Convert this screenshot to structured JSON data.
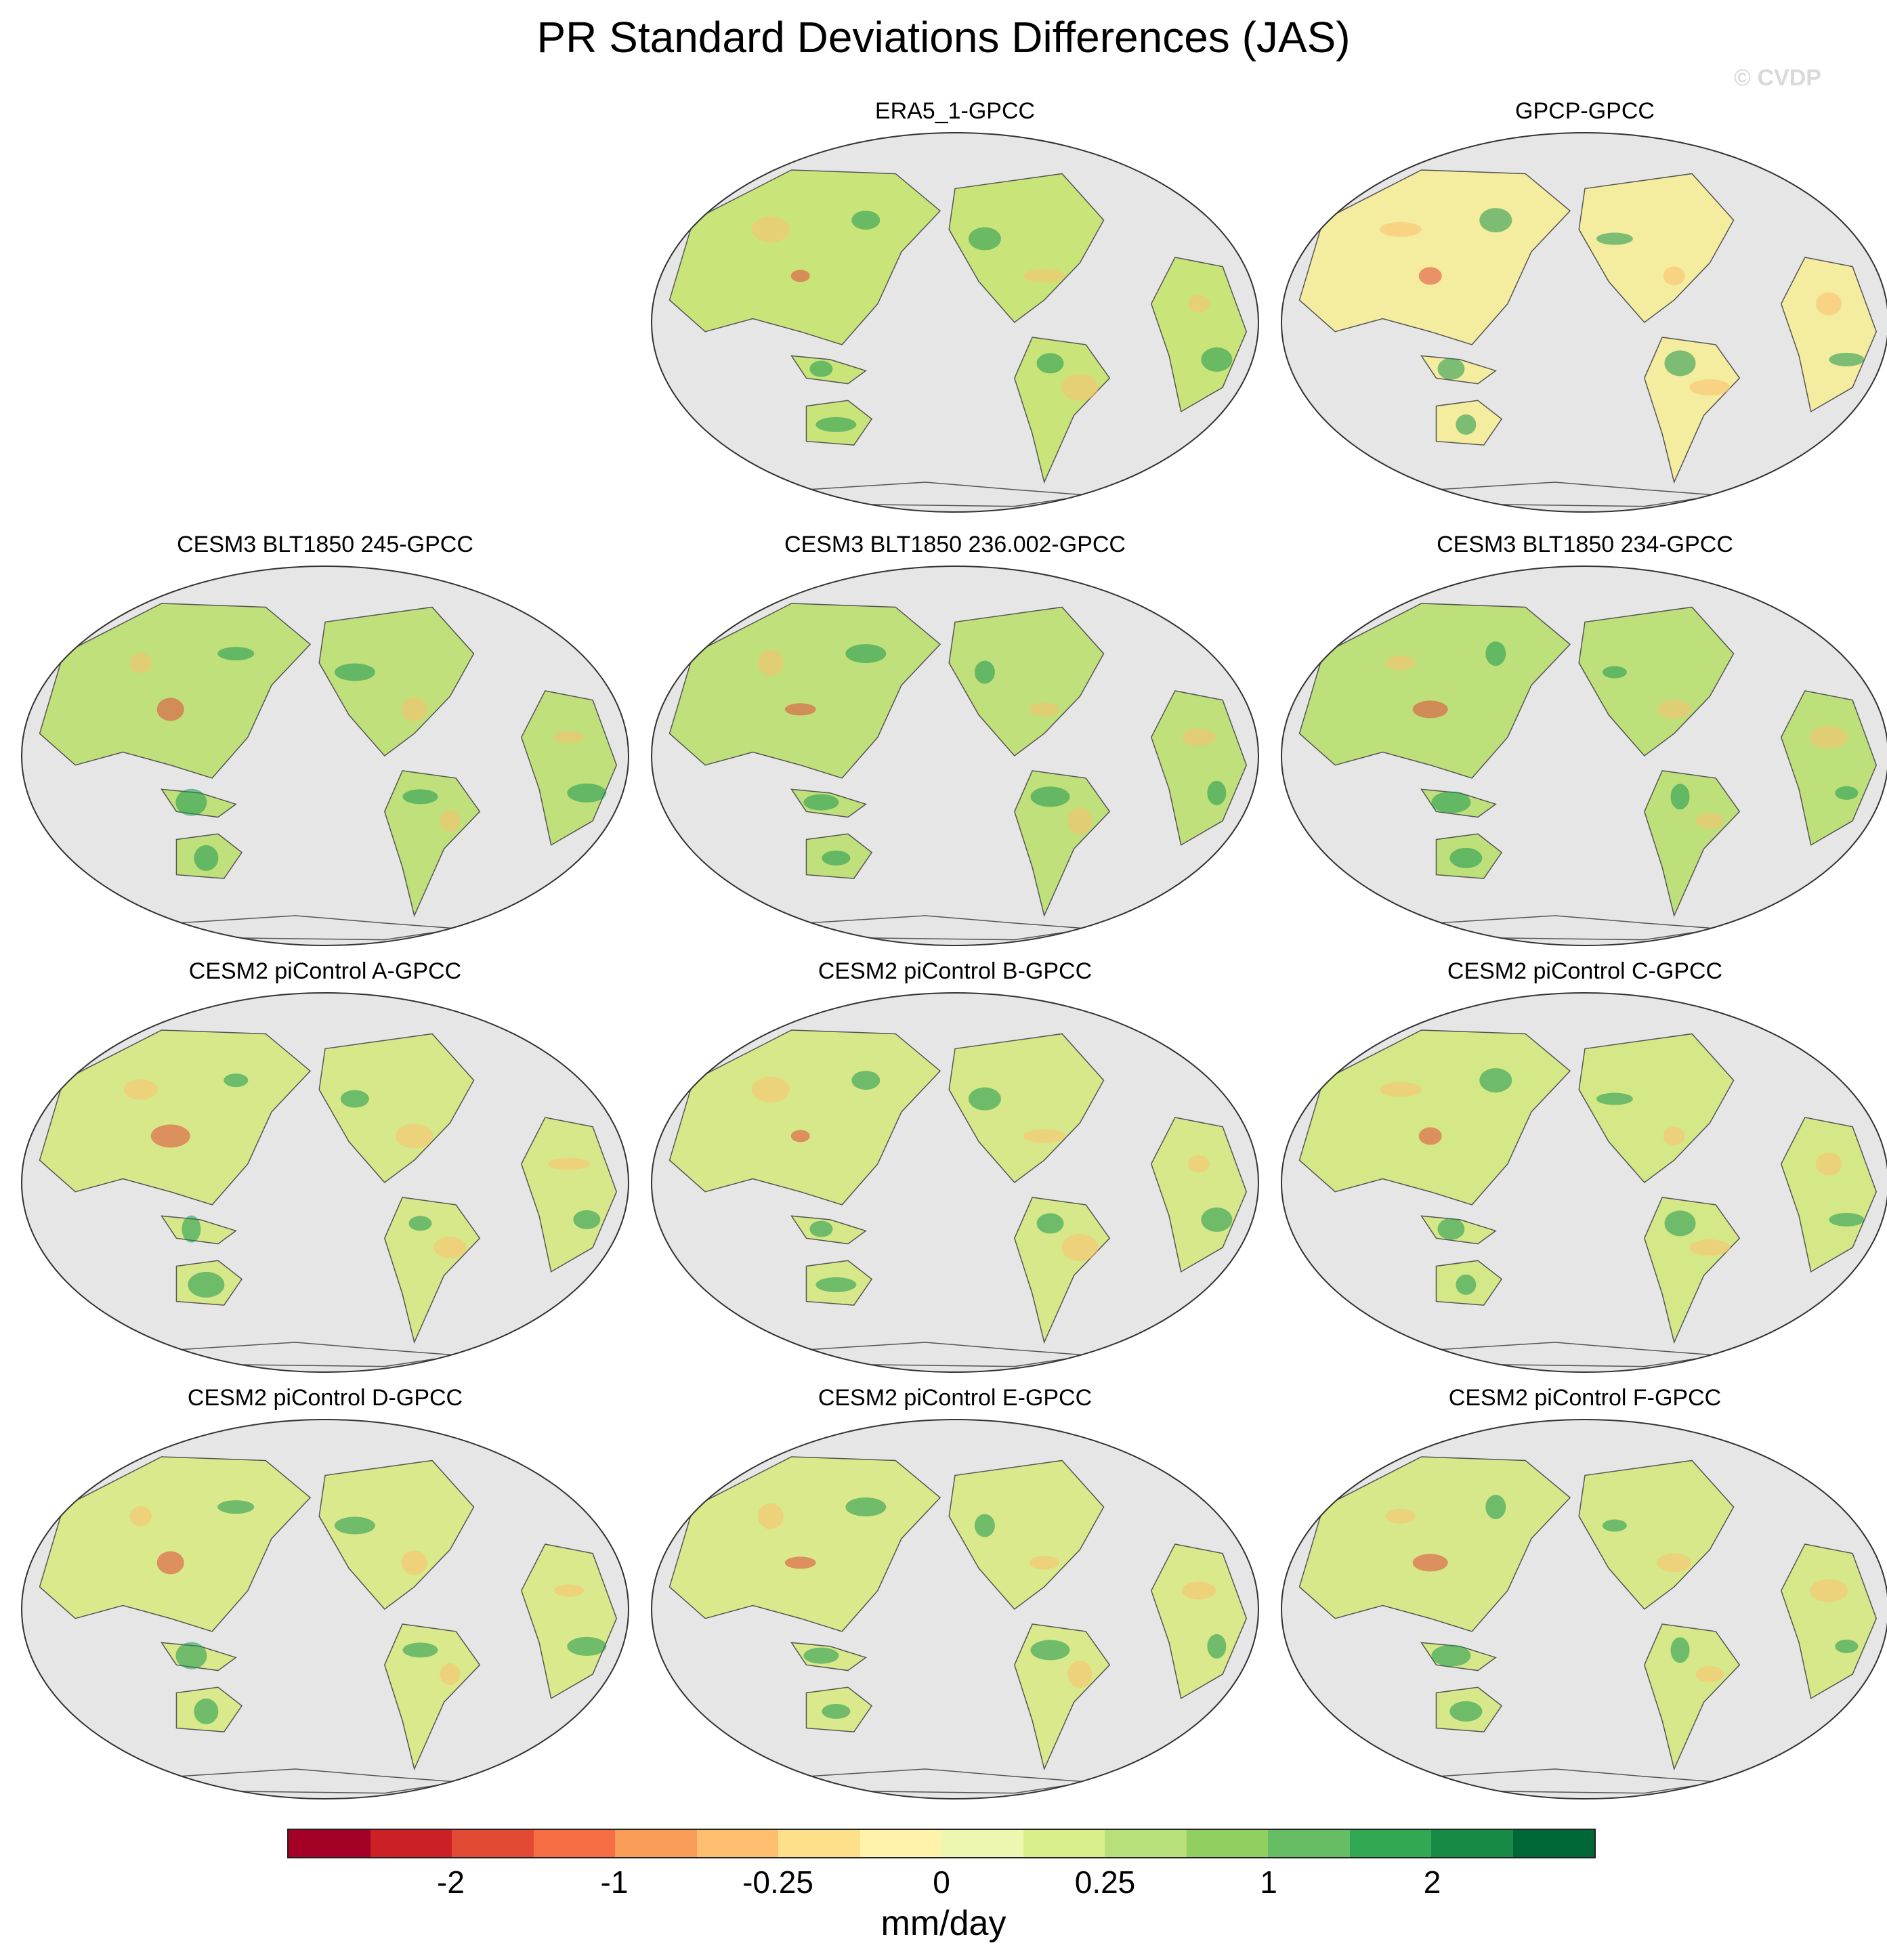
{
  "title": "PR Standard Deviations Differences (JAS)",
  "watermark": "© CVDP",
  "panels": [
    {
      "title": "ERA5_1-GPCC",
      "tint": "#c9e57a"
    },
    {
      "title": "GPCP-GPCC",
      "tint": "#f4ec9e"
    },
    {
      "title": "CESM3 BLT1850 245-GPCC",
      "tint": "#bfe07a"
    },
    {
      "title": "CESM3 BLT1850 236.002-GPCC",
      "tint": "#bfe07a"
    },
    {
      "title": "CESM3 BLT1850 234-GPCC",
      "tint": "#bde07a"
    },
    {
      "title": "CESM2 piControl A-GPCC",
      "tint": "#d6e889"
    },
    {
      "title": "CESM2 piControl B-GPCC",
      "tint": "#d6e889"
    },
    {
      "title": "CESM2 piControl C-GPCC",
      "tint": "#d4e887"
    },
    {
      "title": "CESM2 piControl D-GPCC",
      "tint": "#d9e98b"
    },
    {
      "title": "CESM2 piControl E-GPCC",
      "tint": "#d9e98b"
    },
    {
      "title": "CESM2 piControl F-GPCC",
      "tint": "#d6e889"
    }
  ],
  "colorbar": {
    "unit": "mm/day",
    "colors": [
      "#a50026",
      "#cc2027",
      "#e34a33",
      "#f46d43",
      "#f99d59",
      "#fdbf6f",
      "#fee08b",
      "#fff2aa",
      "#eef7b0",
      "#d9ef8b",
      "#b8e07a",
      "#91cf60",
      "#66bd63",
      "#33a852",
      "#178a45",
      "#006837"
    ],
    "tick_labels": [
      "-2",
      "-1",
      "-0.25",
      "0",
      "0.25",
      "1",
      "2"
    ]
  },
  "map_colors": {
    "ocean": "#e6e6e6",
    "coast": "#555555",
    "wet": "#1a9850",
    "dry": "#e0473a",
    "mid": "#fdbf6f"
  }
}
